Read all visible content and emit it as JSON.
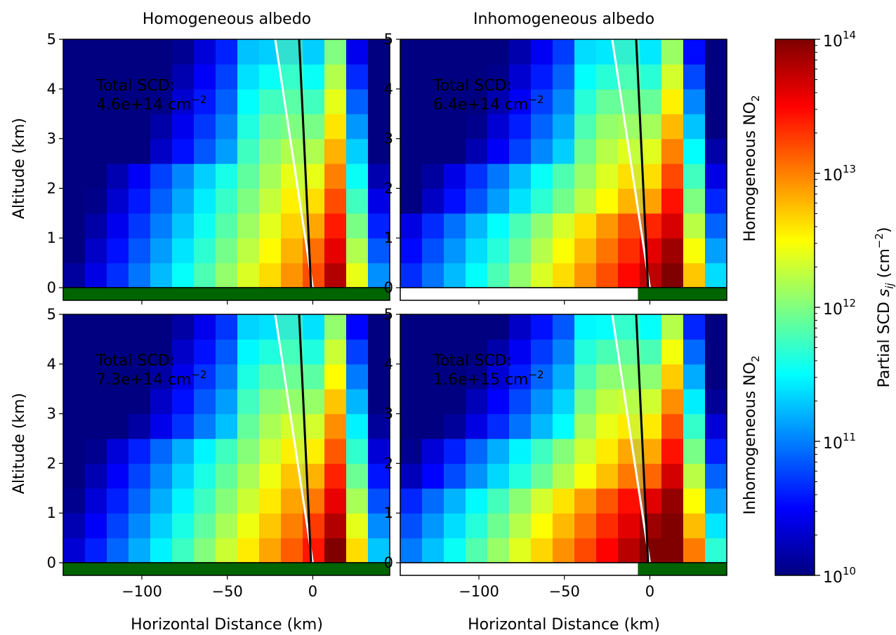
{
  "chart_data": [
    {
      "type": "heatmap",
      "column_title": "Homogeneous albedo",
      "row_label": "Homogeneous NO",
      "row_label_sub": "2",
      "annotation_line1": "Total SCD:",
      "annotation_value": "4.6e+14 cm",
      "annotation_exp": "−2",
      "ylabel": "Altitude (km)",
      "xlabel": "",
      "xlim": [
        -146,
        45
      ],
      "ylim": [
        0,
        5
      ],
      "albedo": "homogeneous",
      "peak_level": 1.0
    },
    {
      "type": "heatmap",
      "column_title": "Inhomogeneous albedo",
      "annotation_line1": "Total SCD:",
      "annotation_value": "6.4e+14 cm",
      "annotation_exp": "−2",
      "ylabel": "",
      "xlabel": "",
      "xlim": [
        -146,
        45
      ],
      "ylim": [
        0,
        5
      ],
      "albedo": "inhomogeneous",
      "peak_level": 1.35
    },
    {
      "type": "heatmap",
      "row_label": "Inhomogeneous NO",
      "row_label_sub": "2",
      "annotation_line1": "Total SCD:",
      "annotation_value": "7.3e+14 cm",
      "annotation_exp": "−2",
      "ylabel": "Altitude (km)",
      "xlabel": "Horizontal Distance (km)",
      "xlim": [
        -146,
        45
      ],
      "ylim": [
        0,
        5
      ],
      "albedo": "homogeneous",
      "peak_level": 1.25
    },
    {
      "type": "heatmap",
      "annotation_line1": "Total SCD:",
      "annotation_value": "1.6e+15 cm",
      "annotation_exp": "−2",
      "ylabel": "",
      "xlabel": "Horizontal Distance (km)",
      "xlim": [
        -146,
        45
      ],
      "ylim": [
        0,
        5
      ],
      "albedo": "inhomogeneous",
      "peak_level": 1.7
    }
  ],
  "shared": {
    "x_ticks": [
      -100,
      -50,
      0
    ],
    "x_tick_labels": [
      "−100",
      "−50",
      "0"
    ],
    "y_ticks": [
      0,
      1,
      2,
      3,
      4,
      5
    ],
    "y_tick_labels": [
      "0",
      "1",
      "2",
      "3",
      "4",
      "5"
    ],
    "colorbar": {
      "label_main": "Partial SCD ",
      "label_var": "s",
      "label_sub": "ij",
      "label_unit": " (cm",
      "label_exp": "−2",
      "label_close": ")",
      "scale": "log",
      "range": [
        10000000000.0,
        100000000000000.0
      ],
      "colormap": "jet",
      "tick_values": [
        10000000000.0,
        100000000000.0,
        1000000000000.0,
        10000000000000.0,
        100000000000000.0
      ],
      "tick_base": "10",
      "tick_exponents": [
        "10",
        "11",
        "12",
        "13",
        "14"
      ]
    },
    "colors": {
      "surface_dark": "#006400",
      "surface_bright": "#ffffff",
      "line_black": "#000000",
      "line_white": "#ffffff",
      "annotation_text": "#ffffff"
    }
  }
}
